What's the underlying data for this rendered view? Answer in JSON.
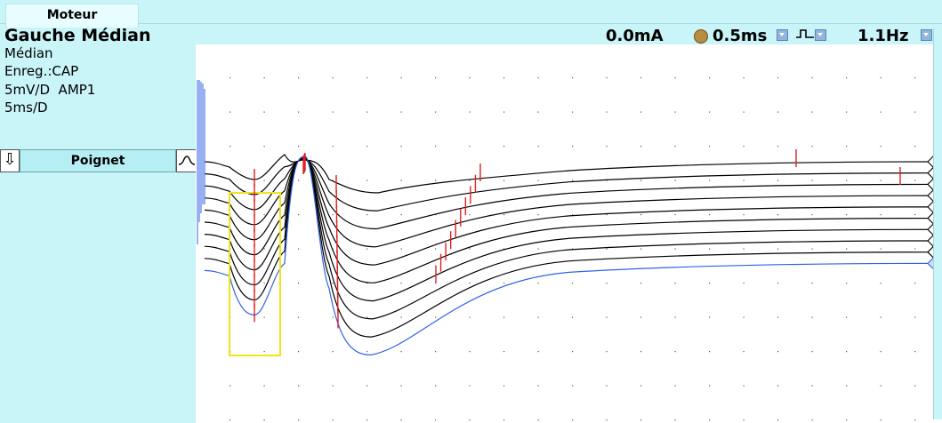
{
  "tabs": [
    {
      "label": "Moteur"
    }
  ],
  "header": {
    "title": "Gauche Médian",
    "info_lines": [
      "Médian",
      "Enreg.:CAP",
      "5mV/D  AMP1",
      "5ms/D"
    ]
  },
  "readouts": {
    "current": "0.0mA",
    "duration": "0.5ms",
    "frequency": "1.1Hz"
  },
  "site": {
    "label": "Poignet"
  },
  "icons": {
    "down_arrow": "down-arrow-icon",
    "waveform": "waveform-icon",
    "stim": "stimulator-icon",
    "pulse": "pulse-shape-icon",
    "dropdown": "chevron-down-icon"
  },
  "colors": {
    "background": "#c9f4f8",
    "trace": "#000000",
    "last_trace": "#2f62e6",
    "marker": "#e02020",
    "highlight": "#f2e21b"
  },
  "traces": {
    "count": 10
  }
}
